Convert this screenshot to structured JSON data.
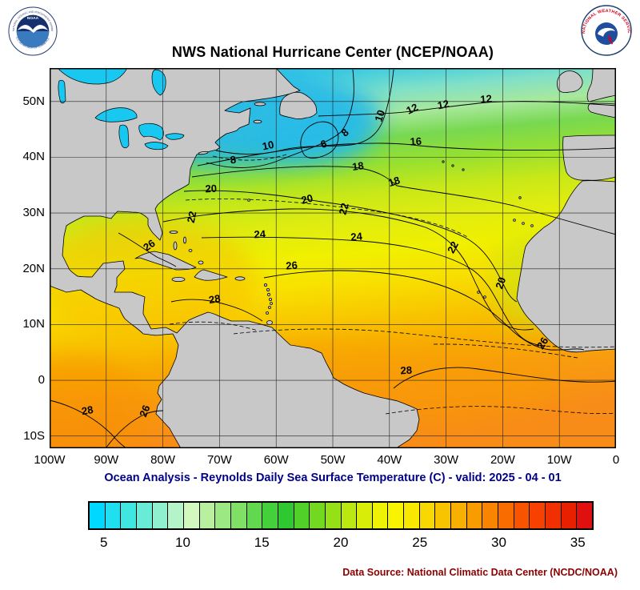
{
  "header": {
    "title": "NWS National Hurricane Center (NCEP/NOAA)"
  },
  "logos": {
    "noaa": {
      "ring_top": "NATIONAL OCEANIC AND ATMOSPHERIC ADMINISTRATION",
      "ring_bottom": "U.S. DEPARTMENT OF COMMERCE",
      "name": "NOAA"
    },
    "nws": {
      "ring_text": "NATIONAL WEATHER SERVICE"
    }
  },
  "map": {
    "lat_labels": [
      "50N",
      "40N",
      "30N",
      "20N",
      "10N",
      "0",
      "10S"
    ],
    "lon_labels": [
      "100W",
      "90W",
      "80W",
      "70W",
      "60W",
      "50W",
      "40W",
      "30W",
      "20W",
      "10W",
      "0"
    ],
    "contour_labels": [
      "8",
      "10",
      "6",
      "8",
      "10",
      "12",
      "12",
      "12",
      "16",
      "18",
      "18",
      "20",
      "20",
      "22",
      "22",
      "24",
      "24",
      "22",
      "26",
      "26",
      "20",
      "28",
      "26",
      "28",
      "26",
      "28"
    ]
  },
  "footer": {
    "subtitle": "Ocean Analysis - Reynolds Daily Sea Surface Temperature (C) - valid: 2025 - 04 - 01",
    "source": "Data Source: National Climatic Data Center (NCDC/NOAA)"
  },
  "colorbar": {
    "tick_labels": [
      "5",
      "10",
      "15",
      "20",
      "25",
      "30",
      "35"
    ],
    "colors": [
      "#00d8ff",
      "#20dff0",
      "#40e6e0",
      "#68ecd8",
      "#8ff0d0",
      "#b4f4c8",
      "#d2f8c0",
      "#b8f0a0",
      "#9ce882",
      "#80e066",
      "#62d84e",
      "#44d03a",
      "#30c830",
      "#50d028",
      "#72d820",
      "#96e018",
      "#bae810",
      "#d8ee08",
      "#eef204",
      "#f8f400",
      "#f8e800",
      "#f8d800",
      "#f8c400",
      "#f8b000",
      "#f89c00",
      "#f88400",
      "#f86c00",
      "#f85400",
      "#f84000",
      "#f03000",
      "#e82000",
      "#e01010"
    ]
  },
  "palette": {
    "land": "#c8c8c8",
    "lake": "#18c8f0",
    "subtitle_text": "#00008b",
    "source_text": "#8b0000"
  }
}
